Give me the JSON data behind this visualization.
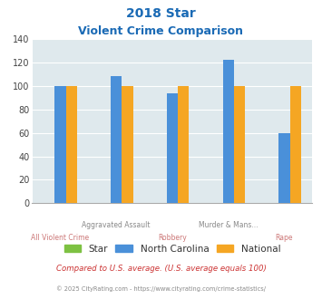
{
  "title_line1": "2018 Star",
  "title_line2": "Violent Crime Comparison",
  "series": {
    "Star": [
      0,
      0,
      0,
      0,
      0
    ],
    "North Carolina": [
      100,
      108,
      94,
      122,
      60
    ],
    "National": [
      100,
      100,
      100,
      100,
      100
    ]
  },
  "colors": {
    "Star": "#7dc142",
    "North Carolina": "#4a90d9",
    "National": "#f5a623"
  },
  "ylim": [
    0,
    140
  ],
  "yticks": [
    0,
    20,
    40,
    60,
    80,
    100,
    120,
    140
  ],
  "title_color": "#1a6ab5",
  "bg_color": "#dfe9ed",
  "footnote1": "Compared to U.S. average. (U.S. average equals 100)",
  "footnote2": "© 2025 CityRating.com - https://www.cityrating.com/crime-statistics/",
  "footnote1_color": "#cc3333",
  "footnote2_color": "#888888",
  "top_labels": [
    "",
    "Aggravated Assault",
    "",
    "Murder & Mans...",
    ""
  ],
  "bottom_labels": [
    "All Violent Crime",
    "",
    "Robbery",
    "",
    "Rape"
  ],
  "top_label_color": "#888888",
  "bottom_label_color": "#cc7777"
}
